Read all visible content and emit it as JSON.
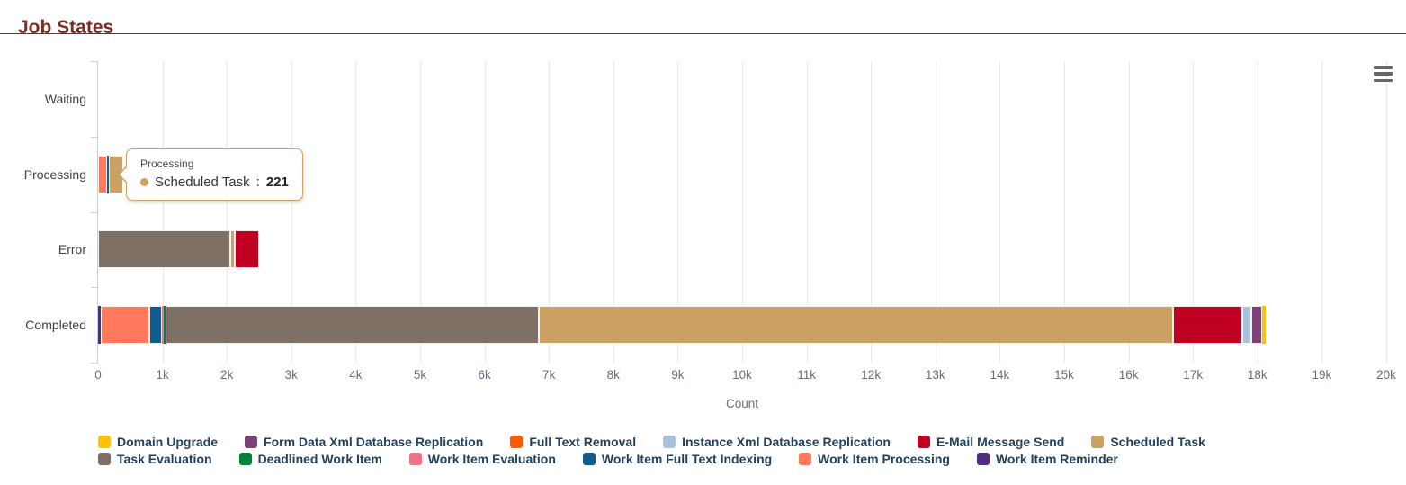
{
  "page": {
    "title": "Job States"
  },
  "palette": {
    "title_maroon": "#7c2d21",
    "axis_line": "#c3d0dd",
    "gridline": "#e7e7e7",
    "tick_label": "#65707c",
    "category_label": "#3f3f3f",
    "legend_text": "#21425e",
    "tooltip_border": "#cda264"
  },
  "tooltip": {
    "category": "Processing",
    "series": "Scheduled Task",
    "separator": ": ",
    "value": "221",
    "dot_color": "#cda264"
  },
  "context_menu_icon": "hamburger-icon",
  "chart_data": {
    "type": "bar",
    "stacked": true,
    "orientation": "horizontal",
    "title": "Job States",
    "xlabel": "Count",
    "grid": true,
    "legend_position": "bottom",
    "categories": [
      "Waiting",
      "Processing",
      "Error",
      "Completed"
    ],
    "xlim": [
      0,
      20000
    ],
    "tick_interval": 1000,
    "tick_labels": [
      "0",
      "1k",
      "2k",
      "3k",
      "4k",
      "5k",
      "6k",
      "7k",
      "8k",
      "9k",
      "10k",
      "11k",
      "12k",
      "13k",
      "14k",
      "15k",
      "16k",
      "17k",
      "18k",
      "19k",
      "20k"
    ],
    "stack_order_note": "segments stack left-to-right in reverse legend order",
    "series": [
      {
        "name": "Domain Upgrade",
        "color": "#ffc107",
        "values": [
          0,
          0,
          0,
          50
        ]
      },
      {
        "name": "Form Data Xml Database Replication",
        "color": "#7d4077",
        "values": [
          0,
          0,
          0,
          170
        ]
      },
      {
        "name": "Full Text Removal",
        "color": "#fd5a00",
        "values": [
          0,
          0,
          0,
          0
        ]
      },
      {
        "name": "Instance Xml Database Replication",
        "color": "#a9c2dc",
        "values": [
          0,
          0,
          0,
          140
        ]
      },
      {
        "name": "E-Mail Message Send",
        "color": "#c00023",
        "values": [
          0,
          0,
          370,
          1070
        ]
      },
      {
        "name": "Scheduled Task",
        "color": "#cca264",
        "values": [
          0,
          221,
          80,
          9850
        ]
      },
      {
        "name": "Task Evaluation",
        "color": "#7f7066",
        "values": [
          0,
          0,
          2050,
          5800
        ]
      },
      {
        "name": "Deadlined Work Item",
        "color": "#00843d",
        "values": [
          0,
          0,
          0,
          25
        ]
      },
      {
        "name": "Work Item Evaluation",
        "color": "#f3708b",
        "values": [
          0,
          0,
          0,
          30
        ]
      },
      {
        "name": "Work Item Full Text Indexing",
        "color": "#0f5c8c",
        "values": [
          0,
          30,
          0,
          190
        ]
      },
      {
        "name": "Work Item Processing",
        "color": "#ff7a5c",
        "values": [
          0,
          140,
          0,
          760
        ]
      },
      {
        "name": "Work Item Reminder",
        "color": "#4f2d7e",
        "values": [
          0,
          0,
          0,
          40
        ]
      }
    ]
  }
}
